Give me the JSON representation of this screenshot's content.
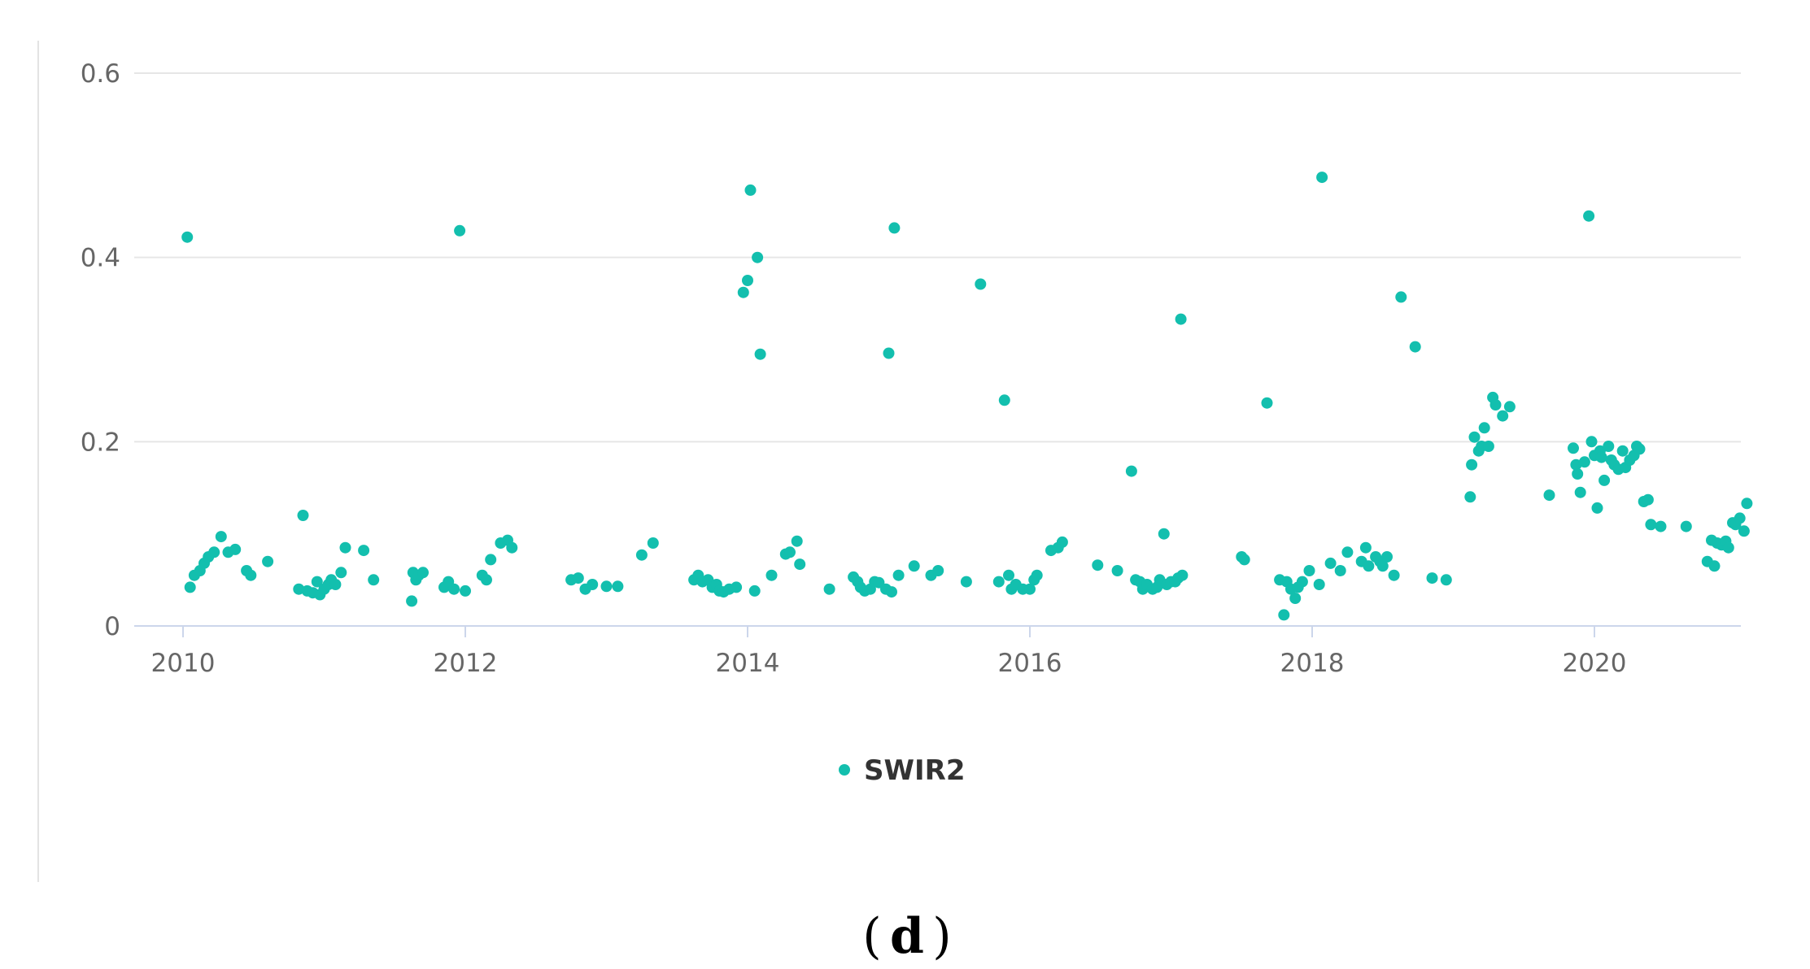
{
  "chart_data": {
    "type": "scatter",
    "title": "",
    "xlabel": "",
    "ylabel": "",
    "xlim": [
      2010.0,
      2021.1
    ],
    "ylim": [
      0,
      0.6
    ],
    "xticks": [
      "2010",
      "2012",
      "2014",
      "2016",
      "2018",
      "2020"
    ],
    "yticks": [
      "0",
      "0.2",
      "0.4",
      "0.6"
    ],
    "grid": "horizontal",
    "legend": "bottom-center",
    "series": [
      {
        "name": "SWIR2",
        "color": "#13BFAE",
        "points": [
          [
            2010.03,
            0.422
          ],
          [
            2010.05,
            0.042
          ],
          [
            2010.08,
            0.055
          ],
          [
            2010.12,
            0.06
          ],
          [
            2010.15,
            0.068
          ],
          [
            2010.18,
            0.075
          ],
          [
            2010.22,
            0.08
          ],
          [
            2010.27,
            0.097
          ],
          [
            2010.32,
            0.08
          ],
          [
            2010.37,
            0.083
          ],
          [
            2010.45,
            0.06
          ],
          [
            2010.48,
            0.055
          ],
          [
            2010.6,
            0.07
          ],
          [
            2010.82,
            0.04
          ],
          [
            2010.85,
            0.12
          ],
          [
            2010.88,
            0.038
          ],
          [
            2010.92,
            0.036
          ],
          [
            2010.95,
            0.048
          ],
          [
            2010.97,
            0.034
          ],
          [
            2011.0,
            0.04
          ],
          [
            2011.03,
            0.045
          ],
          [
            2011.05,
            0.05
          ],
          [
            2011.08,
            0.045
          ],
          [
            2011.12,
            0.058
          ],
          [
            2011.15,
            0.085
          ],
          [
            2011.28,
            0.082
          ],
          [
            2011.35,
            0.05
          ],
          [
            2011.62,
            0.027
          ],
          [
            2011.63,
            0.058
          ],
          [
            2011.65,
            0.05
          ],
          [
            2011.67,
            0.055
          ],
          [
            2011.7,
            0.058
          ],
          [
            2011.85,
            0.042
          ],
          [
            2011.88,
            0.048
          ],
          [
            2011.92,
            0.04
          ],
          [
            2011.96,
            0.429
          ],
          [
            2012.0,
            0.038
          ],
          [
            2012.12,
            0.055
          ],
          [
            2012.15,
            0.05
          ],
          [
            2012.18,
            0.072
          ],
          [
            2012.25,
            0.09
          ],
          [
            2012.3,
            0.093
          ],
          [
            2012.33,
            0.085
          ],
          [
            2012.75,
            0.05
          ],
          [
            2012.8,
            0.052
          ],
          [
            2012.85,
            0.04
          ],
          [
            2012.9,
            0.045
          ],
          [
            2013.0,
            0.043
          ],
          [
            2013.08,
            0.043
          ],
          [
            2013.25,
            0.077
          ],
          [
            2013.33,
            0.09
          ],
          [
            2013.62,
            0.05
          ],
          [
            2013.65,
            0.055
          ],
          [
            2013.68,
            0.048
          ],
          [
            2013.72,
            0.05
          ],
          [
            2013.75,
            0.042
          ],
          [
            2013.78,
            0.045
          ],
          [
            2013.8,
            0.038
          ],
          [
            2013.83,
            0.037
          ],
          [
            2013.87,
            0.04
          ],
          [
            2013.92,
            0.042
          ],
          [
            2013.97,
            0.362
          ],
          [
            2014.0,
            0.375
          ],
          [
            2014.02,
            0.473
          ],
          [
            2014.05,
            0.038
          ],
          [
            2014.07,
            0.4
          ],
          [
            2014.09,
            0.295
          ],
          [
            2014.17,
            0.055
          ],
          [
            2014.27,
            0.078
          ],
          [
            2014.3,
            0.08
          ],
          [
            2014.35,
            0.092
          ],
          [
            2014.37,
            0.067
          ],
          [
            2014.58,
            0.04
          ],
          [
            2014.75,
            0.053
          ],
          [
            2014.78,
            0.048
          ],
          [
            2014.8,
            0.042
          ],
          [
            2014.83,
            0.038
          ],
          [
            2014.87,
            0.04
          ],
          [
            2014.9,
            0.048
          ],
          [
            2014.93,
            0.047
          ],
          [
            2014.98,
            0.04
          ],
          [
            2015.0,
            0.296
          ],
          [
            2015.02,
            0.037
          ],
          [
            2015.04,
            0.432
          ],
          [
            2015.07,
            0.055
          ],
          [
            2015.18,
            0.065
          ],
          [
            2015.3,
            0.055
          ],
          [
            2015.35,
            0.06
          ],
          [
            2015.55,
            0.048
          ],
          [
            2015.65,
            0.371
          ],
          [
            2015.78,
            0.048
          ],
          [
            2015.82,
            0.245
          ],
          [
            2015.85,
            0.055
          ],
          [
            2015.87,
            0.04
          ],
          [
            2015.9,
            0.045
          ],
          [
            2015.95,
            0.04
          ],
          [
            2016.0,
            0.04
          ],
          [
            2016.03,
            0.05
          ],
          [
            2016.05,
            0.055
          ],
          [
            2016.15,
            0.082
          ],
          [
            2016.2,
            0.085
          ],
          [
            2016.23,
            0.091
          ],
          [
            2016.48,
            0.066
          ],
          [
            2016.62,
            0.06
          ],
          [
            2016.72,
            0.168
          ],
          [
            2016.75,
            0.05
          ],
          [
            2016.78,
            0.048
          ],
          [
            2016.8,
            0.04
          ],
          [
            2016.83,
            0.045
          ],
          [
            2016.87,
            0.04
          ],
          [
            2016.9,
            0.042
          ],
          [
            2016.92,
            0.05
          ],
          [
            2016.95,
            0.1
          ],
          [
            2016.97,
            0.045
          ],
          [
            2017.0,
            0.048
          ],
          [
            2017.03,
            0.048
          ],
          [
            2017.05,
            0.052
          ],
          [
            2017.07,
            0.333
          ],
          [
            2017.08,
            0.055
          ],
          [
            2017.5,
            0.075
          ],
          [
            2017.52,
            0.072
          ],
          [
            2017.68,
            0.242
          ],
          [
            2017.77,
            0.05
          ],
          [
            2017.8,
            0.012
          ],
          [
            2017.82,
            0.048
          ],
          [
            2017.85,
            0.04
          ],
          [
            2017.88,
            0.03
          ],
          [
            2017.9,
            0.042
          ],
          [
            2017.93,
            0.048
          ],
          [
            2017.98,
            0.06
          ],
          [
            2018.05,
            0.045
          ],
          [
            2018.07,
            0.487
          ],
          [
            2018.13,
            0.068
          ],
          [
            2018.2,
            0.06
          ],
          [
            2018.25,
            0.08
          ],
          [
            2018.35,
            0.07
          ],
          [
            2018.38,
            0.085
          ],
          [
            2018.4,
            0.065
          ],
          [
            2018.45,
            0.075
          ],
          [
            2018.48,
            0.07
          ],
          [
            2018.5,
            0.065
          ],
          [
            2018.53,
            0.075
          ],
          [
            2018.58,
            0.055
          ],
          [
            2018.63,
            0.357
          ],
          [
            2018.73,
            0.303
          ],
          [
            2018.85,
            0.052
          ],
          [
            2018.95,
            0.05
          ],
          [
            2019.12,
            0.14
          ],
          [
            2019.13,
            0.175
          ],
          [
            2019.15,
            0.205
          ],
          [
            2019.18,
            0.19
          ],
          [
            2019.2,
            0.195
          ],
          [
            2019.22,
            0.215
          ],
          [
            2019.25,
            0.195
          ],
          [
            2019.28,
            0.248
          ],
          [
            2019.3,
            0.24
          ],
          [
            2019.35,
            0.228
          ],
          [
            2019.4,
            0.238
          ],
          [
            2019.68,
            0.142
          ],
          [
            2019.85,
            0.193
          ],
          [
            2019.87,
            0.175
          ],
          [
            2019.88,
            0.165
          ],
          [
            2019.9,
            0.145
          ],
          [
            2019.93,
            0.178
          ],
          [
            2019.96,
            0.445
          ],
          [
            2019.98,
            0.2
          ],
          [
            2020.0,
            0.185
          ],
          [
            2020.02,
            0.128
          ],
          [
            2020.04,
            0.19
          ],
          [
            2020.05,
            0.183
          ],
          [
            2020.07,
            0.158
          ],
          [
            2020.1,
            0.195
          ],
          [
            2020.12,
            0.18
          ],
          [
            2020.14,
            0.175
          ],
          [
            2020.17,
            0.17
          ],
          [
            2020.2,
            0.19
          ],
          [
            2020.22,
            0.172
          ],
          [
            2020.25,
            0.18
          ],
          [
            2020.28,
            0.185
          ],
          [
            2020.3,
            0.195
          ],
          [
            2020.32,
            0.192
          ],
          [
            2020.35,
            0.135
          ],
          [
            2020.38,
            0.137
          ],
          [
            2020.4,
            0.11
          ],
          [
            2020.47,
            0.108
          ],
          [
            2020.65,
            0.108
          ],
          [
            2020.8,
            0.07
          ],
          [
            2020.83,
            0.093
          ],
          [
            2020.85,
            0.065
          ],
          [
            2020.87,
            0.09
          ],
          [
            2020.9,
            0.088
          ],
          [
            2020.93,
            0.092
          ],
          [
            2020.95,
            0.085
          ],
          [
            2020.98,
            0.112
          ],
          [
            2021.0,
            0.11
          ],
          [
            2021.03,
            0.117
          ],
          [
            2021.06,
            0.103
          ],
          [
            2021.08,
            0.133
          ]
        ]
      }
    ],
    "panel_label": "d"
  }
}
